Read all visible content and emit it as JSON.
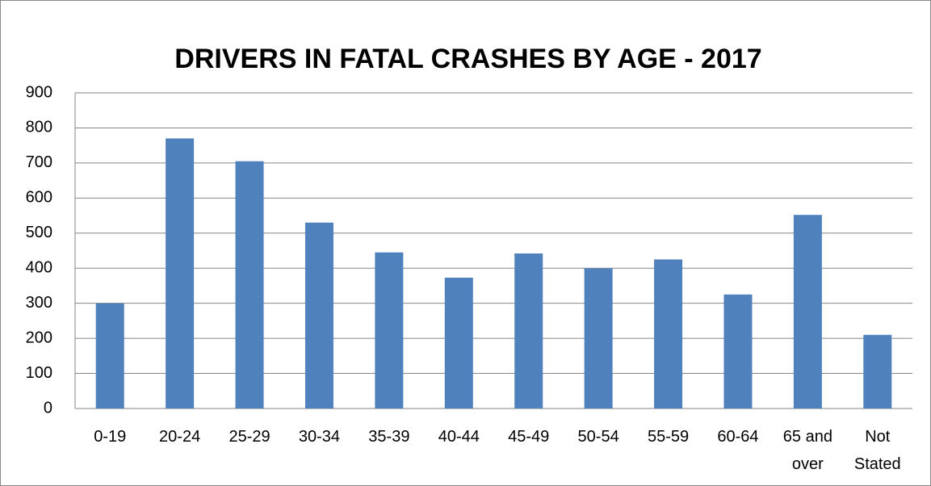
{
  "chart_data": {
    "type": "bar",
    "title": "DRIVERS IN FATAL CRASHES BY AGE - 2017",
    "categories": [
      "0-19",
      "20-24",
      "25-29",
      "30-34",
      "35-39",
      "40-44",
      "45-49",
      "50-54",
      "55-59",
      "60-64",
      "65 and over",
      "Not Stated"
    ],
    "values": [
      300,
      770,
      705,
      530,
      445,
      373,
      442,
      400,
      425,
      325,
      552,
      210
    ],
    "color": "#4f81bd",
    "ylim": [
      0,
      900
    ],
    "yticks": [
      0,
      100,
      200,
      300,
      400,
      500,
      600,
      700,
      800,
      900
    ],
    "grid": true
  }
}
